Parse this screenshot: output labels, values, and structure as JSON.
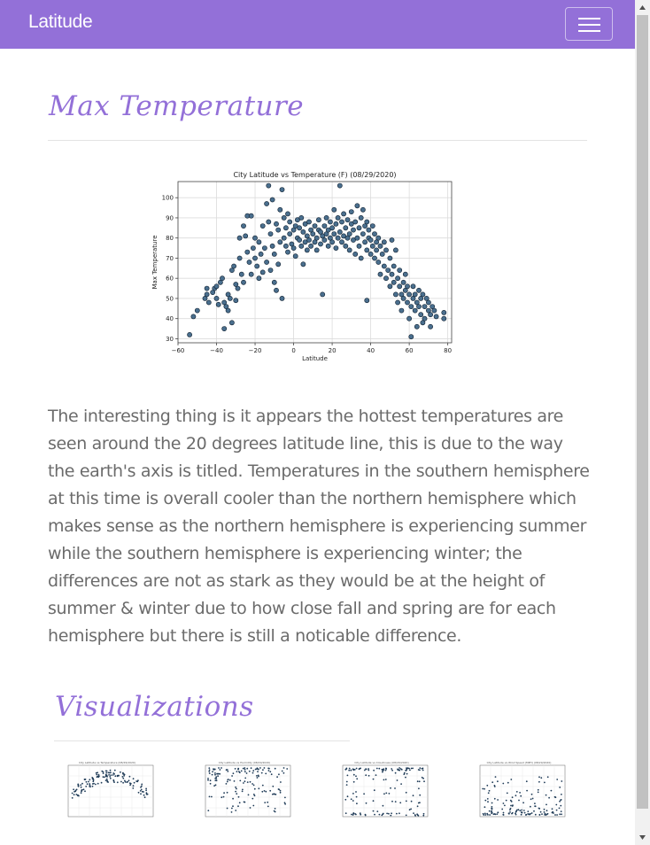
{
  "navbar": {
    "brand": "Latitude",
    "toggle_icon": "hamburger-icon"
  },
  "section": {
    "title": "Max Temperature"
  },
  "description": "The interesting thing is it appears the hottest temperatures are seen around the 20 degrees latitude line, this is due to the way the earth's axis is titled. Temperatures in the southern hemisphere at this time is overall cooler than the northern hemisphere which makes sense as the northern hemisphere is experiencing summer while the southern hemisphere is experiencing winter; the differences are not as stark as they would be at the height of summer & winter due to how close fall and spring are for each hemisphere but there is still a noticable difference.",
  "visualizations": {
    "title": "Visualizations"
  },
  "colors": {
    "accent": "#9370d8",
    "marker_fill": "#4a6f8e",
    "marker_edge": "#0f1f2f"
  },
  "chart_data": {
    "type": "scatter",
    "title": "City Latitude vs Temperature (F) (08/29/2020)",
    "xlabel": "Latitude",
    "ylabel": "Max Temperature",
    "xlim": [
      -60,
      82
    ],
    "ylim": [
      28,
      108
    ],
    "xticks": [
      -60,
      -40,
      -20,
      0,
      20,
      40,
      60,
      80
    ],
    "xtick_labels": [
      "−60",
      "−40",
      "−20",
      "0",
      "20",
      "40",
      "60",
      "80"
    ],
    "yticks": [
      30,
      40,
      50,
      60,
      70,
      80,
      90,
      100
    ],
    "grid": true,
    "points": [
      [
        -54,
        32
      ],
      [
        -52,
        41
      ],
      [
        -50,
        44
      ],
      [
        -46,
        50
      ],
      [
        -45,
        52
      ],
      [
        -45,
        55
      ],
      [
        -44,
        48
      ],
      [
        -42,
        53
      ],
      [
        -41,
        55
      ],
      [
        -40,
        56
      ],
      [
        -40,
        50
      ],
      [
        -39,
        47
      ],
      [
        -38,
        58
      ],
      [
        -37,
        60
      ],
      [
        -36,
        35
      ],
      [
        -36,
        48
      ],
      [
        -35,
        46
      ],
      [
        -34,
        44
      ],
      [
        -34,
        52
      ],
      [
        -33,
        50
      ],
      [
        -32,
        64
      ],
      [
        -32,
        38
      ],
      [
        -31,
        66
      ],
      [
        -30,
        57
      ],
      [
        -30,
        49
      ],
      [
        -29,
        55
      ],
      [
        -28,
        70
      ],
      [
        -28,
        80
      ],
      [
        -27,
        62
      ],
      [
        -26,
        58
      ],
      [
        -26,
        86
      ],
      [
        -25,
        81
      ],
      [
        -24,
        91
      ],
      [
        -24,
        73
      ],
      [
        -23,
        68
      ],
      [
        -22,
        62
      ],
      [
        -22,
        91
      ],
      [
        -21,
        75
      ],
      [
        -20,
        70
      ],
      [
        -20,
        80
      ],
      [
        -19,
        66
      ],
      [
        -18,
        78
      ],
      [
        -18,
        60
      ],
      [
        -17,
        72
      ],
      [
        -16,
        63
      ],
      [
        -16,
        86
      ],
      [
        -15,
        75
      ],
      [
        -14,
        68
      ],
      [
        -14,
        97
      ],
      [
        -13,
        88
      ],
      [
        -13,
        106
      ],
      [
        -12,
        82
      ],
      [
        -12,
        64
      ],
      [
        -11,
        76
      ],
      [
        -11,
        99
      ],
      [
        -10,
        72
      ],
      [
        -10,
        58
      ],
      [
        -9,
        87
      ],
      [
        -9,
        54
      ],
      [
        -8,
        84
      ],
      [
        -8,
        67
      ],
      [
        -7,
        94
      ],
      [
        -7,
        78
      ],
      [
        -6,
        50
      ],
      [
        -6,
        104
      ],
      [
        -5,
        90
      ],
      [
        -5,
        80
      ],
      [
        -4,
        85
      ],
      [
        -4,
        76
      ],
      [
        -3,
        92
      ],
      [
        -3,
        73
      ],
      [
        -2,
        88
      ],
      [
        -2,
        82
      ],
      [
        -1,
        77
      ],
      [
        0,
        84
      ],
      [
        0,
        75
      ],
      [
        1,
        86
      ],
      [
        1,
        71
      ],
      [
        2,
        80
      ],
      [
        2,
        89
      ],
      [
        3,
        79
      ],
      [
        3,
        85
      ],
      [
        4,
        76
      ],
      [
        4,
        90
      ],
      [
        5,
        83
      ],
      [
        5,
        67
      ],
      [
        6,
        78
      ],
      [
        6,
        87
      ],
      [
        7,
        74
      ],
      [
        7,
        81
      ],
      [
        8,
        88
      ],
      [
        8,
        79
      ],
      [
        9,
        76
      ],
      [
        9,
        84
      ],
      [
        10,
        82
      ],
      [
        11,
        78
      ],
      [
        11,
        86
      ],
      [
        12,
        80
      ],
      [
        12,
        74
      ],
      [
        13,
        84
      ],
      [
        13,
        89
      ],
      [
        14,
        77
      ],
      [
        14,
        83
      ],
      [
        15,
        52
      ],
      [
        15,
        81
      ],
      [
        16,
        86
      ],
      [
        16,
        79
      ],
      [
        17,
        90
      ],
      [
        17,
        82
      ],
      [
        18,
        76
      ],
      [
        18,
        84
      ],
      [
        19,
        88
      ],
      [
        19,
        80
      ],
      [
        20,
        78
      ],
      [
        20,
        85
      ],
      [
        21,
        94
      ],
      [
        21,
        82
      ],
      [
        22,
        75
      ],
      [
        22,
        87
      ],
      [
        23,
        80
      ],
      [
        23,
        90
      ],
      [
        24,
        106
      ],
      [
        24,
        83
      ],
      [
        25,
        78
      ],
      [
        25,
        88
      ],
      [
        26,
        81
      ],
      [
        26,
        92
      ],
      [
        27,
        76
      ],
      [
        27,
        85
      ],
      [
        28,
        80
      ],
      [
        28,
        89
      ],
      [
        29,
        82
      ],
      [
        29,
        74
      ],
      [
        30,
        87
      ],
      [
        30,
        93
      ],
      [
        31,
        79
      ],
      [
        31,
        84
      ],
      [
        32,
        72
      ],
      [
        32,
        88
      ],
      [
        33,
        80
      ],
      [
        33,
        96
      ],
      [
        34,
        76
      ],
      [
        34,
        85
      ],
      [
        35,
        90
      ],
      [
        35,
        70
      ],
      [
        36,
        82
      ],
      [
        36,
        94
      ],
      [
        37,
        78
      ],
      [
        37,
        86
      ],
      [
        38,
        74
      ],
      [
        38,
        49
      ],
      [
        38,
        88
      ],
      [
        39,
        80
      ],
      [
        39,
        84
      ],
      [
        40,
        72
      ],
      [
        40,
        79
      ],
      [
        41,
        86
      ],
      [
        41,
        76
      ],
      [
        42,
        70
      ],
      [
        42,
        82
      ],
      [
        43,
        74
      ],
      [
        43,
        78
      ],
      [
        44,
        68
      ],
      [
        44,
        80
      ],
      [
        45,
        76
      ],
      [
        45,
        62
      ],
      [
        46,
        72
      ],
      [
        47,
        66
      ],
      [
        47,
        78
      ],
      [
        48,
        60
      ],
      [
        48,
        74
      ],
      [
        49,
        64
      ],
      [
        50,
        70
      ],
      [
        50,
        56
      ],
      [
        51,
        62
      ],
      [
        51,
        79
      ],
      [
        52,
        58
      ],
      [
        52,
        66
      ],
      [
        53,
        52
      ],
      [
        53,
        74
      ],
      [
        54,
        60
      ],
      [
        54,
        48
      ],
      [
        55,
        56
      ],
      [
        55,
        64
      ],
      [
        56,
        52
      ],
      [
        56,
        44
      ],
      [
        57,
        58
      ],
      [
        57,
        50
      ],
      [
        58,
        54
      ],
      [
        58,
        62
      ],
      [
        59,
        48
      ],
      [
        59,
        56
      ],
      [
        60,
        52
      ],
      [
        60,
        40
      ],
      [
        61,
        46
      ],
      [
        61,
        31
      ],
      [
        62,
        50
      ],
      [
        62,
        56
      ],
      [
        63,
        44
      ],
      [
        63,
        52
      ],
      [
        64,
        48
      ],
      [
        64,
        36
      ],
      [
        65,
        54
      ],
      [
        65,
        46
      ],
      [
        66,
        42
      ],
      [
        66,
        50
      ],
      [
        67,
        38
      ],
      [
        67,
        52
      ],
      [
        68,
        46
      ],
      [
        68,
        40
      ],
      [
        69,
        50
      ],
      [
        70,
        44
      ],
      [
        70,
        48
      ],
      [
        71,
        42
      ],
      [
        71,
        36
      ],
      [
        72,
        46
      ],
      [
        73,
        44
      ],
      [
        74,
        41
      ],
      [
        78,
        43
      ],
      [
        78,
        40
      ]
    ]
  }
}
